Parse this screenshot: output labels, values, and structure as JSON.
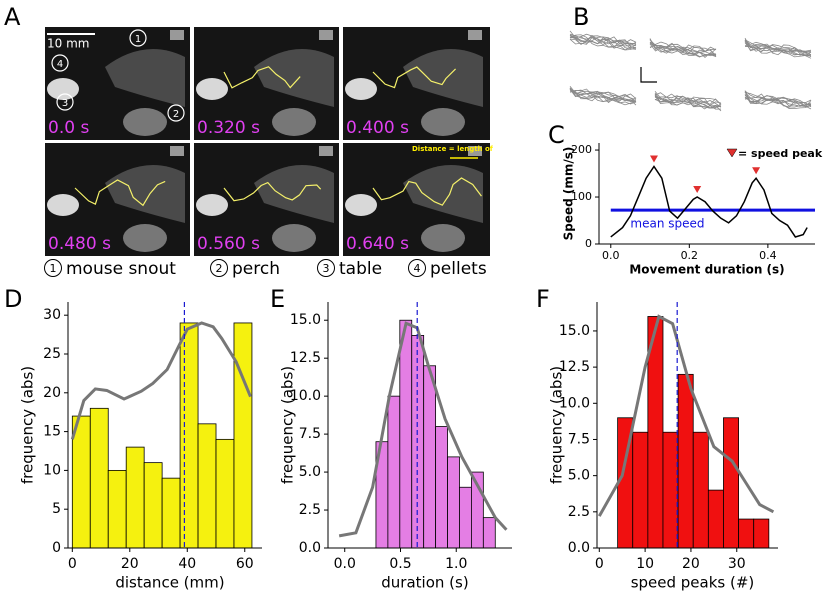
{
  "figure": {
    "panel_letters": [
      "A",
      "B",
      "C",
      "D",
      "E",
      "F"
    ],
    "frames": [
      "0.0 s",
      "0.320 s",
      "0.400 s",
      "0.480 s",
      "0.560 s",
      "0.640 s"
    ],
    "scale_bar": "10 mm",
    "frame_markers": [
      "1",
      "4",
      "3",
      "2"
    ],
    "annotation": "Distance = length of",
    "legend": [
      {
        "number": "1",
        "label": "mouse snout"
      },
      {
        "number": "2",
        "label": "perch"
      },
      {
        "number": "3",
        "label": "table"
      },
      {
        "number": "4",
        "label": "pellets"
      }
    ]
  },
  "chart_data": [
    {
      "type": "line",
      "xlabel": "Movement duration (s)",
      "ylabel": "Speed (mm/s)",
      "color": "#000000",
      "x": [
        0.0,
        0.03,
        0.05,
        0.07,
        0.09,
        0.11,
        0.13,
        0.15,
        0.17,
        0.19,
        0.21,
        0.22,
        0.24,
        0.26,
        0.28,
        0.3,
        0.32,
        0.34,
        0.36,
        0.37,
        0.39,
        0.41,
        0.43,
        0.45,
        0.47,
        0.49,
        0.5
      ],
      "values": [
        15,
        35,
        60,
        100,
        140,
        165,
        140,
        70,
        55,
        75,
        95,
        100,
        90,
        70,
        55,
        45,
        60,
        90,
        130,
        140,
        115,
        65,
        50,
        40,
        15,
        20,
        35
      ],
      "xlim": [
        -0.03,
        0.52
      ],
      "ylim": [
        0,
        215
      ],
      "xticks": [
        {
          "value": 0,
          "label": "0.0"
        },
        0.2,
        0.4
      ],
      "yticks": [
        0,
        100,
        200
      ],
      "mean_line": {
        "value": 72,
        "label": "mean speed",
        "color": "#1010e0"
      },
      "peaks": {
        "x": [
          0.11,
          0.22,
          0.37
        ],
        "values": [
          165,
          100,
          140
        ],
        "label": "= speed peak",
        "color": "#e0302f"
      }
    },
    {
      "type": "histogram",
      "xlabel": "distance (mm)",
      "ylabel": "frequency (abs)",
      "color": "#f5f10f",
      "bins": [
        0,
        6.25,
        12.5,
        18.75,
        25,
        31.25,
        37.5,
        43.75,
        50,
        56.25,
        62.5
      ],
      "values": [
        17,
        18,
        10,
        13,
        11,
        9,
        29,
        16,
        14,
        29
      ],
      "xlim": [
        -1.5,
        66
      ],
      "ylim": [
        0,
        31.7
      ],
      "xticks": [
        0,
        20,
        40,
        60
      ],
      "yticks": [
        0,
        5,
        10,
        15,
        20,
        25,
        30
      ],
      "mean": 39,
      "kde": {
        "x": [
          0,
          4,
          8,
          12,
          18,
          24,
          28,
          33,
          37,
          40,
          45,
          49,
          52,
          57,
          62
        ],
        "values": [
          14,
          19,
          20.5,
          20.3,
          19.2,
          20.2,
          21.2,
          23,
          26,
          28.2,
          29,
          28.5,
          27,
          24,
          19.5
        ]
      }
    },
    {
      "type": "histogram",
      "xlabel": "duration (s)",
      "ylabel": "frequency (abs)",
      "color": "#e47ee4",
      "bins": [
        0.28,
        0.387,
        0.494,
        0.601,
        0.708,
        0.815,
        0.922,
        1.029,
        1.136,
        1.243,
        1.35
      ],
      "values": [
        7,
        10,
        15,
        14,
        12,
        8,
        6,
        4,
        5,
        2
      ],
      "xlim": [
        -0.15,
        1.5
      ],
      "ylim": [
        0,
        16.2
      ],
      "xticks": [
        {
          "value": 0,
          "label": "0.0"
        },
        0.5,
        {
          "value": 1,
          "label": "1.0"
        }
      ],
      "yticks": [
        {
          "value": 0,
          "label": "0.0"
        },
        2.5,
        {
          "value": 5,
          "label": "5.0"
        },
        7.5,
        {
          "value": 10,
          "label": "10.0"
        },
        12.5,
        {
          "value": 15,
          "label": "15.0"
        }
      ],
      "mean": 0.65,
      "kde": {
        "x": [
          -0.05,
          0.1,
          0.25,
          0.4,
          0.55,
          0.65,
          0.75,
          0.9,
          1.05,
          1.2,
          1.35,
          1.45
        ],
        "values": [
          0.8,
          1,
          4,
          10,
          14.8,
          14.5,
          12,
          8.5,
          6,
          4,
          2,
          1.2
        ]
      }
    },
    {
      "type": "histogram",
      "xlabel": "speed peaks (#)",
      "ylabel": "frequency (abs)",
      "color": "#f01010",
      "bins": [
        4,
        7.3,
        10.6,
        13.9,
        17.2,
        20.5,
        23.8,
        27.1,
        30.4,
        33.7,
        37
      ],
      "values": [
        9,
        8,
        16,
        8,
        12,
        8,
        4,
        9,
        2,
        2
      ],
      "xlim": [
        -0.5,
        39
      ],
      "ylim": [
        0,
        17
      ],
      "xticks": [
        0,
        10,
        20,
        30
      ],
      "yticks": [
        {
          "value": 0,
          "label": "0.0"
        },
        2.5,
        {
          "value": 5,
          "label": "5.0"
        },
        7.5,
        {
          "value": 10,
          "label": "10.0"
        },
        12.5,
        {
          "value": 15,
          "label": "15.0"
        }
      ],
      "mean": 17,
      "kde": {
        "x": [
          0,
          5,
          10,
          13,
          16,
          20,
          25,
          29,
          32,
          35,
          38
        ],
        "values": [
          2.2,
          5,
          12.5,
          16,
          15.5,
          11,
          7,
          6,
          4.5,
          3,
          2.5
        ]
      }
    }
  ]
}
